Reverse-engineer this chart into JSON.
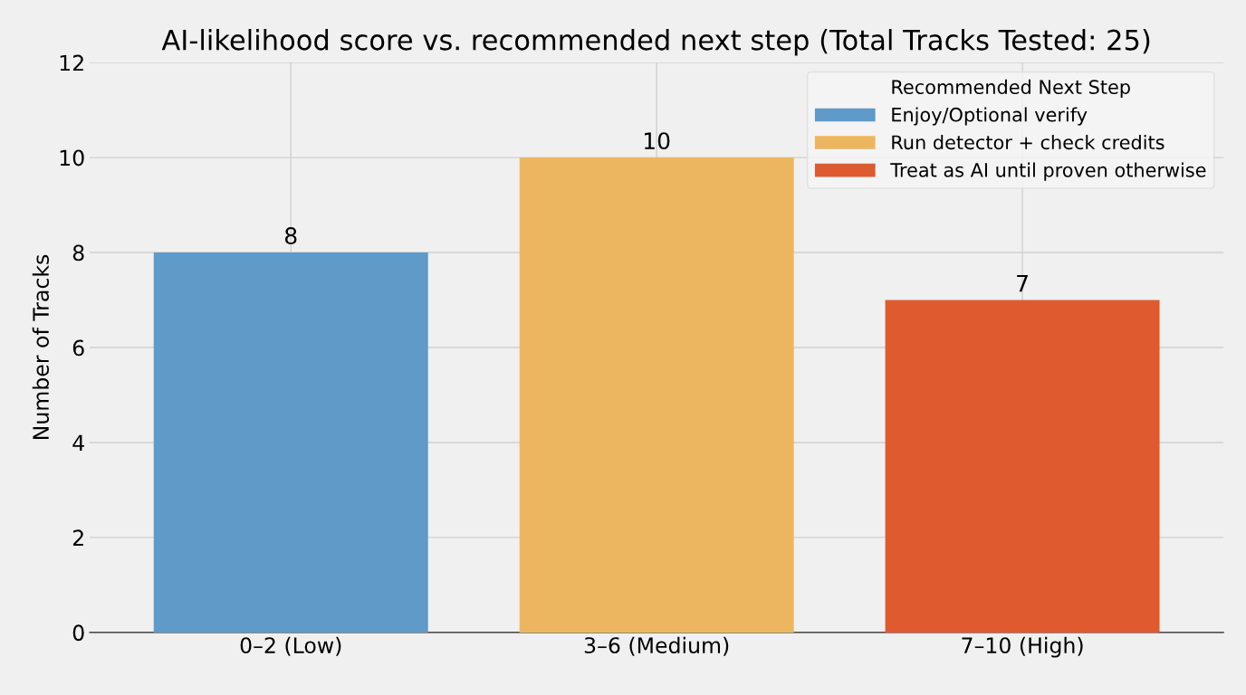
{
  "chart_data": {
    "type": "bar",
    "title": "AI-likelihood score vs. recommended next step (Total Tracks Tested: 25)",
    "ylabel": "Number of Tracks",
    "categories": [
      "0–2 (Low)",
      "3–6 (Medium)",
      "7–10 (High)"
    ],
    "series": [
      {
        "name": "Enjoy/Optional verify",
        "color": "#5f9ac8",
        "values": [
          8,
          null,
          null
        ]
      },
      {
        "name": "Run detector + check credits",
        "color": "#ecb660",
        "values": [
          null,
          10,
          null
        ]
      },
      {
        "name": "Treat as AI until proven otherwise",
        "color": "#e05a2f",
        "values": [
          null,
          null,
          7
        ]
      }
    ],
    "ylim": [
      0,
      12
    ],
    "yticks": [
      0,
      2,
      4,
      6,
      8,
      10,
      12
    ],
    "grid": true,
    "legend": "top right",
    "legend_title": "Recommended Next Step",
    "data_labels": true
  }
}
